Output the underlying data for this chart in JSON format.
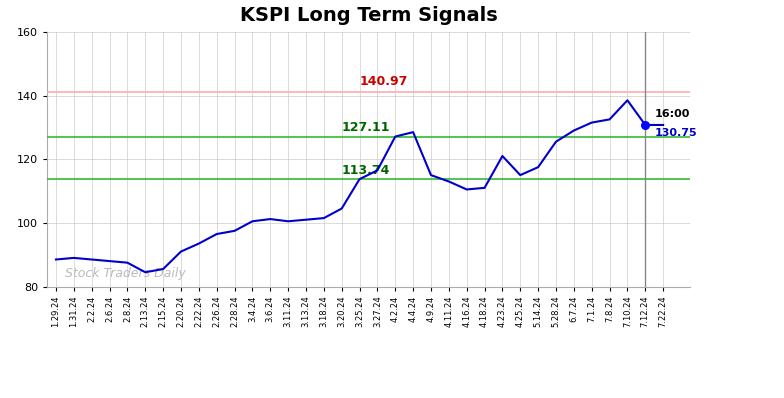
{
  "title": "KSPI Long Term Signals",
  "title_fontsize": 14,
  "watermark": "Stock Traders Daily",
  "xlabels": [
    "1.29.24",
    "1.31.24",
    "2.2.24",
    "2.6.24",
    "2.8.24",
    "2.13.24",
    "2.15.24",
    "2.20.24",
    "2.22.24",
    "2.26.24",
    "2.28.24",
    "3.4.24",
    "3.6.24",
    "3.11.24",
    "3.13.24",
    "3.18.24",
    "3.20.24",
    "3.25.24",
    "3.27.24",
    "4.2.24",
    "4.4.24",
    "4.9.24",
    "4.11.24",
    "4.16.24",
    "4.18.24",
    "4.23.24",
    "4.25.24",
    "5.14.24",
    "5.28.24",
    "6.7.24",
    "7.1.24",
    "7.8.24",
    "7.10.24",
    "7.12.24",
    "7.22.24"
  ],
  "yvalues": [
    88.5,
    89.0,
    88.5,
    88.0,
    87.5,
    84.5,
    85.5,
    91.0,
    93.5,
    96.5,
    97.5,
    100.5,
    101.2,
    100.5,
    101.0,
    101.5,
    104.5,
    113.74,
    116.5,
    127.11,
    128.5,
    115.0,
    113.0,
    110.5,
    111.0,
    121.0,
    115.0,
    117.5,
    125.5,
    129.0,
    131.5,
    132.5,
    138.5,
    130.75,
    130.75
  ],
  "line_color": "#0000cc",
  "last_point_color": "#0000ff",
  "hline_red": 140.97,
  "hline_green_upper": 127.11,
  "hline_green_lower": 113.74,
  "hline_red_color": "#ffaaaa",
  "hline_green_color": "#33bb33",
  "hline_red_linewidth": 1.2,
  "hline_green_linewidth": 1.2,
  "label_140": "140.97",
  "label_127": "127.11",
  "label_113": "113.74",
  "label_last_time": "16:00",
  "label_last_val": "130.75",
  "ylim": [
    80,
    160
  ],
  "yticks": [
    80,
    100,
    120,
    140,
    160
  ],
  "background_color": "#ffffff",
  "grid_color": "#cccccc",
  "spine_color": "#aaaaaa"
}
